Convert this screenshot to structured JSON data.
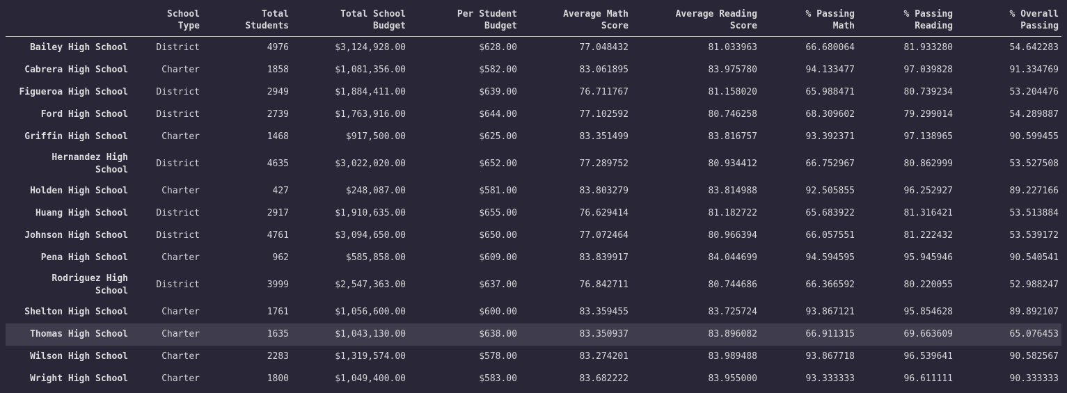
{
  "columns": [
    "",
    "School\nType",
    "Total\nStudents",
    "Total School\nBudget",
    "Per Student\nBudget",
    "Average Math\nScore",
    "Average Reading\nScore",
    "% Passing\nMath",
    "% Passing\nReading",
    "% Overall\nPassing"
  ],
  "rows": [
    {
      "name": "Bailey High School",
      "type": "District",
      "students": "4976",
      "budget": "$3,124,928.00",
      "per_student": "$628.00",
      "avg_math": "77.048432",
      "avg_reading": "81.033963",
      "pass_math": "66.680064",
      "pass_reading": "81.933280",
      "overall": "54.642283"
    },
    {
      "name": "Cabrera High School",
      "type": "Charter",
      "students": "1858",
      "budget": "$1,081,356.00",
      "per_student": "$582.00",
      "avg_math": "83.061895",
      "avg_reading": "83.975780",
      "pass_math": "94.133477",
      "pass_reading": "97.039828",
      "overall": "91.334769"
    },
    {
      "name": "Figueroa High School",
      "type": "District",
      "students": "2949",
      "budget": "$1,884,411.00",
      "per_student": "$639.00",
      "avg_math": "76.711767",
      "avg_reading": "81.158020",
      "pass_math": "65.988471",
      "pass_reading": "80.739234",
      "overall": "53.204476"
    },
    {
      "name": "Ford High School",
      "type": "District",
      "students": "2739",
      "budget": "$1,763,916.00",
      "per_student": "$644.00",
      "avg_math": "77.102592",
      "avg_reading": "80.746258",
      "pass_math": "68.309602",
      "pass_reading": "79.299014",
      "overall": "54.289887"
    },
    {
      "name": "Griffin High School",
      "type": "Charter",
      "students": "1468",
      "budget": "$917,500.00",
      "per_student": "$625.00",
      "avg_math": "83.351499",
      "avg_reading": "83.816757",
      "pass_math": "93.392371",
      "pass_reading": "97.138965",
      "overall": "90.599455"
    },
    {
      "name": "Hernandez High School",
      "type": "District",
      "students": "4635",
      "budget": "$3,022,020.00",
      "per_student": "$652.00",
      "avg_math": "77.289752",
      "avg_reading": "80.934412",
      "pass_math": "66.752967",
      "pass_reading": "80.862999",
      "overall": "53.527508"
    },
    {
      "name": "Holden High School",
      "type": "Charter",
      "students": "427",
      "budget": "$248,087.00",
      "per_student": "$581.00",
      "avg_math": "83.803279",
      "avg_reading": "83.814988",
      "pass_math": "92.505855",
      "pass_reading": "96.252927",
      "overall": "89.227166"
    },
    {
      "name": "Huang High School",
      "type": "District",
      "students": "2917",
      "budget": "$1,910,635.00",
      "per_student": "$655.00",
      "avg_math": "76.629414",
      "avg_reading": "81.182722",
      "pass_math": "65.683922",
      "pass_reading": "81.316421",
      "overall": "53.513884"
    },
    {
      "name": "Johnson High School",
      "type": "District",
      "students": "4761",
      "budget": "$3,094,650.00",
      "per_student": "$650.00",
      "avg_math": "77.072464",
      "avg_reading": "80.966394",
      "pass_math": "66.057551",
      "pass_reading": "81.222432",
      "overall": "53.539172"
    },
    {
      "name": "Pena High School",
      "type": "Charter",
      "students": "962",
      "budget": "$585,858.00",
      "per_student": "$609.00",
      "avg_math": "83.839917",
      "avg_reading": "84.044699",
      "pass_math": "94.594595",
      "pass_reading": "95.945946",
      "overall": "90.540541"
    },
    {
      "name": "Rodriguez High School",
      "type": "District",
      "students": "3999",
      "budget": "$2,547,363.00",
      "per_student": "$637.00",
      "avg_math": "76.842711",
      "avg_reading": "80.744686",
      "pass_math": "66.366592",
      "pass_reading": "80.220055",
      "overall": "52.988247"
    },
    {
      "name": "Shelton High School",
      "type": "Charter",
      "students": "1761",
      "budget": "$1,056,600.00",
      "per_student": "$600.00",
      "avg_math": "83.359455",
      "avg_reading": "83.725724",
      "pass_math": "93.867121",
      "pass_reading": "95.854628",
      "overall": "89.892107"
    },
    {
      "name": "Thomas High School",
      "type": "Charter",
      "students": "1635",
      "budget": "$1,043,130.00",
      "per_student": "$638.00",
      "avg_math": "83.350937",
      "avg_reading": "83.896082",
      "pass_math": "66.911315",
      "pass_reading": "69.663609",
      "overall": "65.076453"
    },
    {
      "name": "Wilson High School",
      "type": "Charter",
      "students": "2283",
      "budget": "$1,319,574.00",
      "per_student": "$578.00",
      "avg_math": "83.274201",
      "avg_reading": "83.989488",
      "pass_math": "93.867718",
      "pass_reading": "96.539641",
      "overall": "90.582567"
    },
    {
      "name": "Wright High School",
      "type": "Charter",
      "students": "1800",
      "budget": "$1,049,400.00",
      "per_student": "$583.00",
      "avg_math": "83.682222",
      "avg_reading": "83.955000",
      "pass_math": "93.333333",
      "pass_reading": "96.611111",
      "overall": "90.333333"
    }
  ],
  "hovered_row": "Thomas High School",
  "colors": {
    "background": "#282637",
    "hover_row": "#3f3c4d",
    "text": "#d6d6d6",
    "header_rule": "#bdbdbd"
  }
}
